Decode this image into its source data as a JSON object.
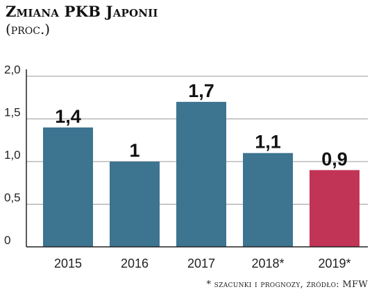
{
  "chart_data": {
    "type": "bar",
    "title": "Zmiana PKB Japonii",
    "subtitle": "(proc.)",
    "categories": [
      "2015",
      "2016",
      "2017",
      "2018*",
      "2019*"
    ],
    "values": [
      1.4,
      1,
      1.7,
      1.1,
      0.9
    ],
    "value_labels": [
      "1,4",
      "1",
      "1,7",
      "1,1",
      "0,9"
    ],
    "yticks": [
      "0",
      "0,5",
      "1,0",
      "1,5",
      "2,0"
    ],
    "ytick_values": [
      0,
      0.5,
      1.0,
      1.5,
      2.0
    ],
    "ylim": [
      0,
      2.0
    ],
    "grid": true,
    "colors": {
      "actual": "#3d7490",
      "forecast": "#c23455",
      "grid": "#9a9a9a",
      "axis": "#222222"
    },
    "bar_colors": [
      "actual",
      "actual",
      "actual",
      "actual",
      "forecast"
    ],
    "footnote": "* szacunki i prognozy, źródło: MFW"
  }
}
